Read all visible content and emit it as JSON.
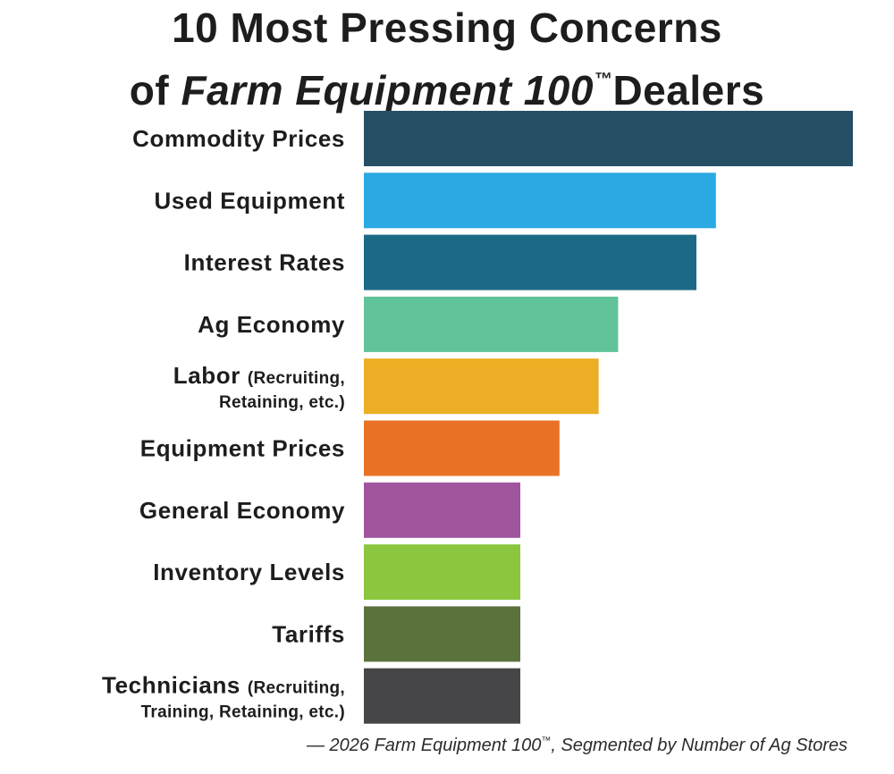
{
  "title": {
    "line1": "10 Most Pressing Concerns",
    "line2_prefix": "of ",
    "line2_italic": "Farm Equipment 100",
    "line2_tm": "™",
    "line2_suffix": "Dealers"
  },
  "source": {
    "prefix": "— 2026 Farm Equipment 100",
    "tm": "™",
    "suffix": ", Segmented by Number of Ag Stores"
  },
  "chart_data": {
    "type": "bar",
    "orientation": "horizontal",
    "title": "10 Most Pressing Concerns of Farm Equipment 100™ Dealers",
    "xlabel": "",
    "ylabel": "",
    "grid": false,
    "legend": "none",
    "xlim": [
      0,
      10
    ],
    "categories": [
      {
        "main": "Commodity Prices",
        "sub": ""
      },
      {
        "main": "Used Equipment",
        "sub": ""
      },
      {
        "main": "Interest Rates",
        "sub": ""
      },
      {
        "main": "Ag Economy",
        "sub": ""
      },
      {
        "main": "Labor",
        "sub": "(Recruiting,",
        "sub2": "Retaining, etc.)"
      },
      {
        "main": "Equipment Prices",
        "sub": ""
      },
      {
        "main": "General Economy",
        "sub": ""
      },
      {
        "main": "Inventory Levels",
        "sub": ""
      },
      {
        "main": "Tariffs",
        "sub": ""
      },
      {
        "main": "Technicians",
        "sub": "(Recruiting,",
        "sub2": "Training, Retaining, etc.)"
      }
    ],
    "values": [
      10,
      7.2,
      6.8,
      5.2,
      4.8,
      4.0,
      3.2,
      3.2,
      3.2,
      3.2
    ],
    "colors": [
      "#264f66",
      "#2aa9e3",
      "#1c6986",
      "#61c39a",
      "#ebae24",
      "#ea7226",
      "#a0549e",
      "#8cc63f",
      "#5b723d",
      "#464648"
    ]
  }
}
